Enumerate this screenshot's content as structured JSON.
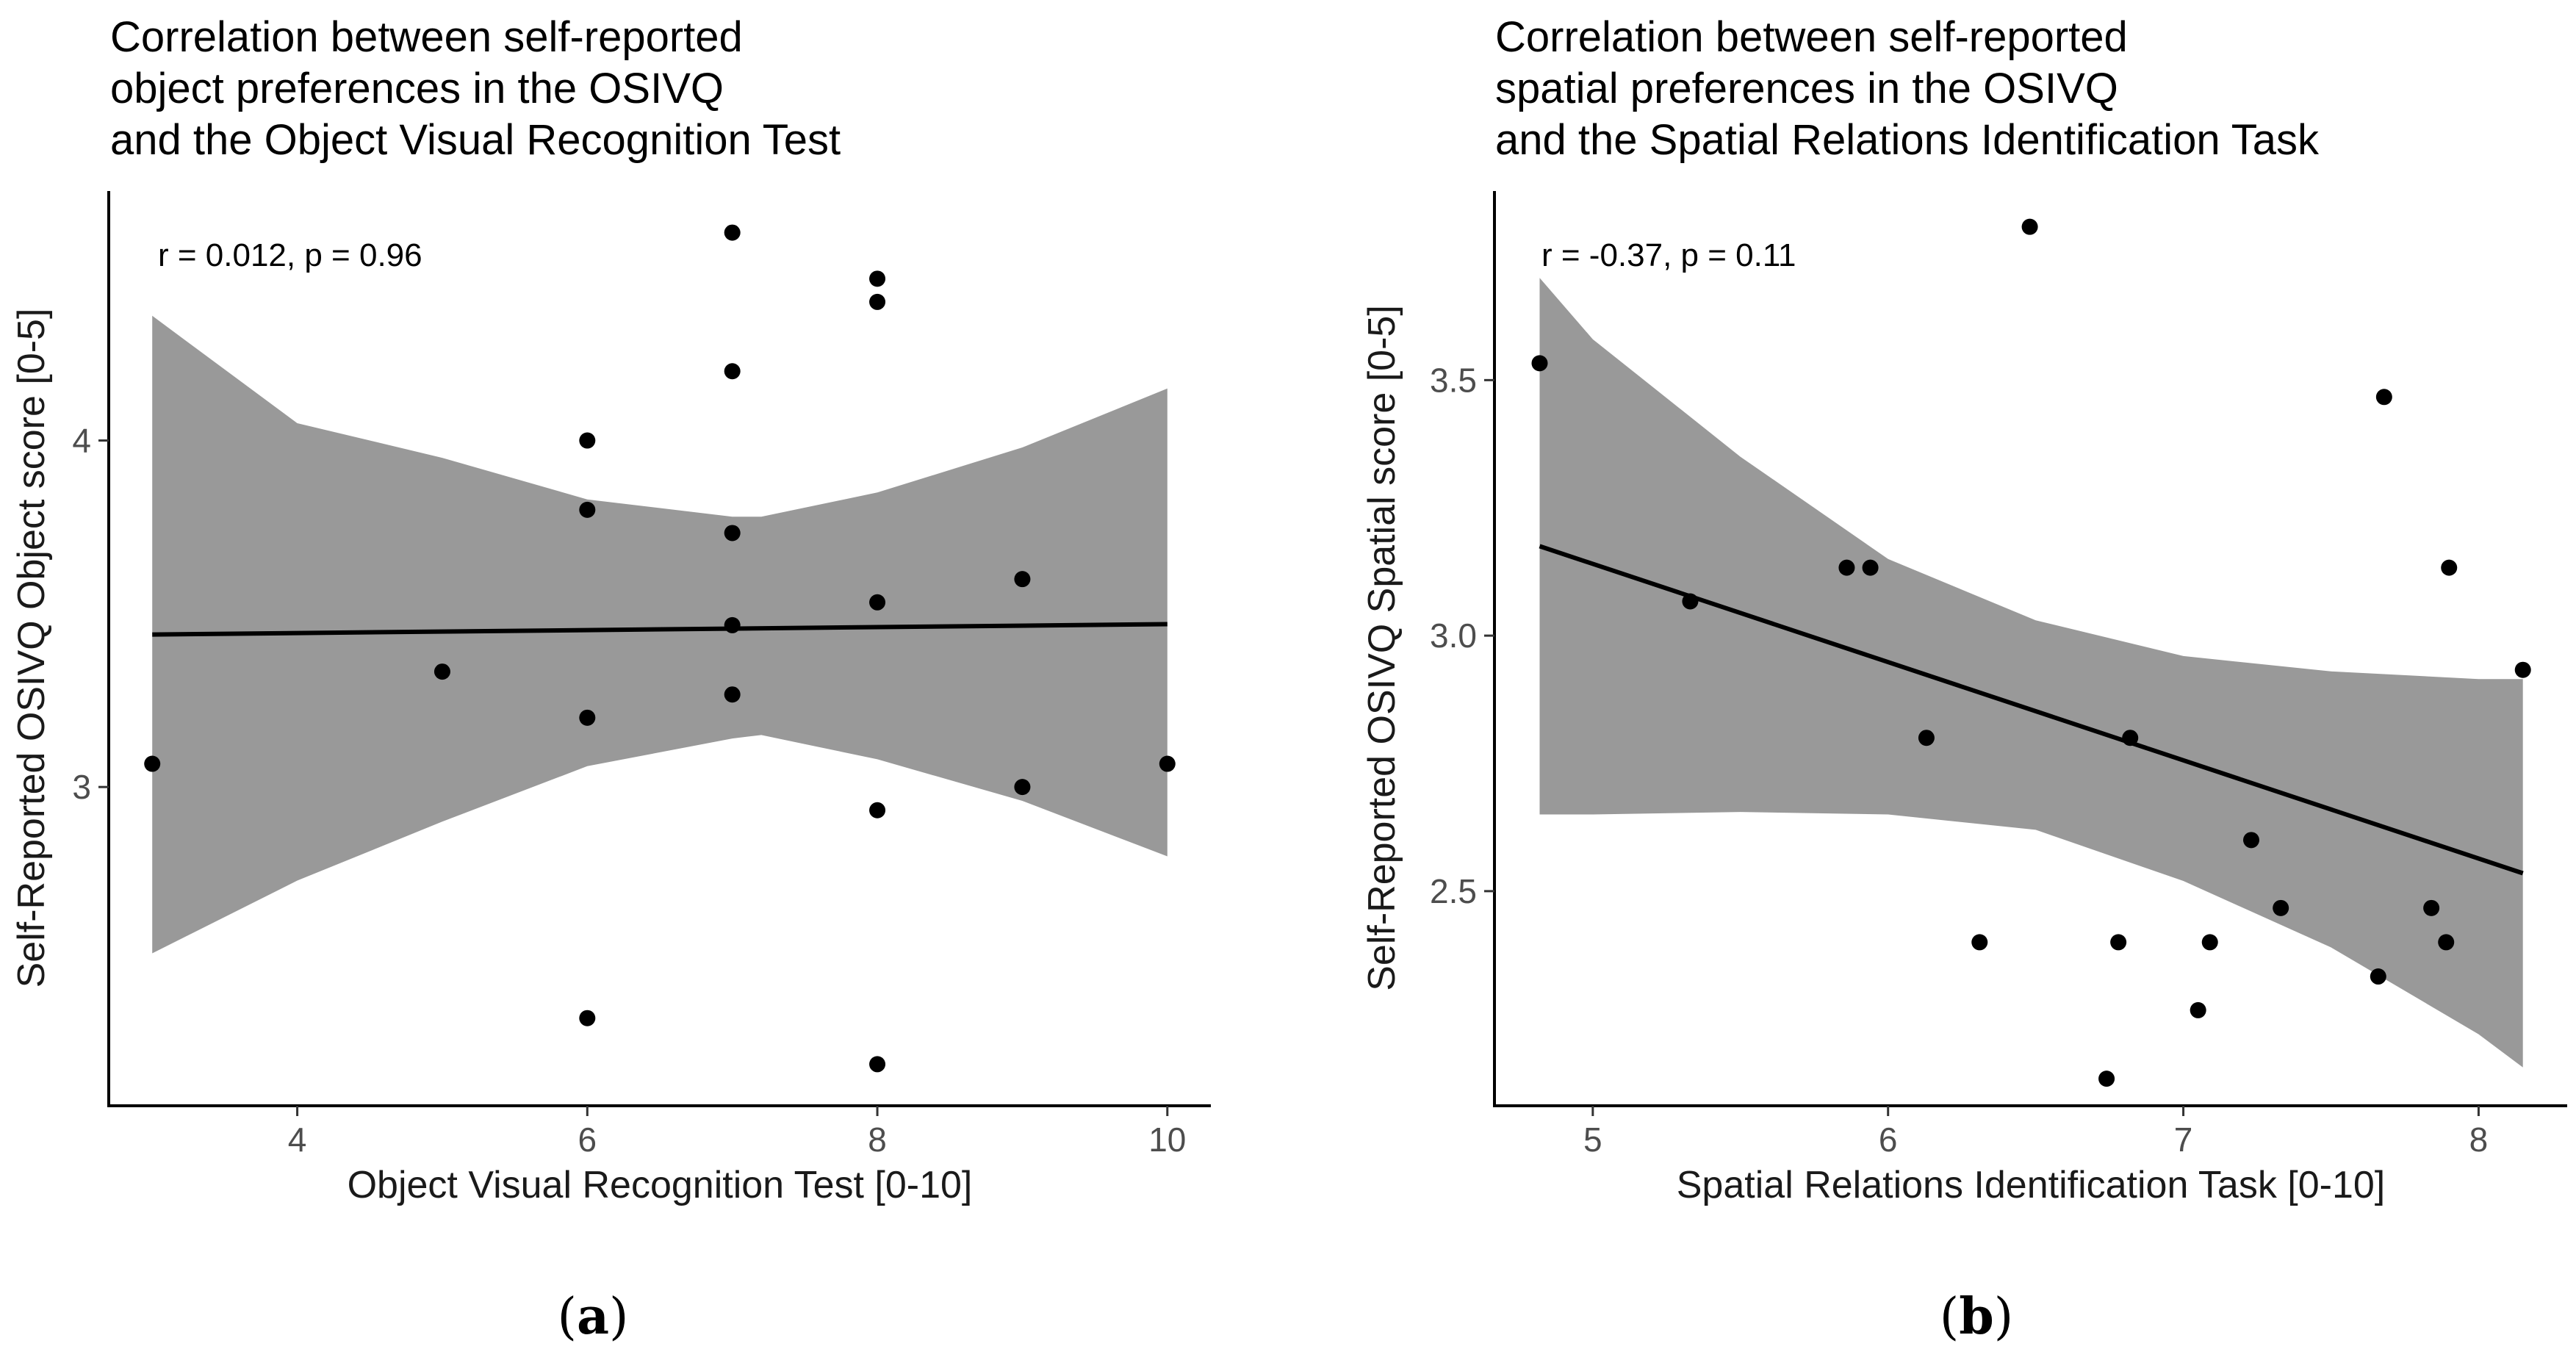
{
  "chart_data": [
    {
      "type": "scatter",
      "panel_label": "a",
      "title": [
        "Correlation between self-reported",
        "object preferences in the OSIVQ",
        "and the Object Visual Recognition Test"
      ],
      "xlabel": "Object Visual Recognition Test [0-10]",
      "ylabel": "Self-Reported OSIVQ Object score [0-5]",
      "xlim": [
        2.7,
        10.3
      ],
      "ylim": [
        2.08,
        4.72
      ],
      "xticks": [
        4,
        6,
        8,
        10
      ],
      "yticks": [
        3,
        4
      ],
      "annotation": "r = 0.012, p = 0.96",
      "points": [
        {
          "x": 3,
          "y": 3.067
        },
        {
          "x": 5,
          "y": 3.333
        },
        {
          "x": 6,
          "y": 4.0
        },
        {
          "x": 6,
          "y": 3.8
        },
        {
          "x": 6,
          "y": 3.2
        },
        {
          "x": 6,
          "y": 2.333
        },
        {
          "x": 7,
          "y": 4.6
        },
        {
          "x": 7,
          "y": 4.2
        },
        {
          "x": 7,
          "y": 3.733
        },
        {
          "x": 7,
          "y": 3.467
        },
        {
          "x": 7,
          "y": 3.267
        },
        {
          "x": 8,
          "y": 4.467
        },
        {
          "x": 8,
          "y": 4.4
        },
        {
          "x": 8,
          "y": 3.533
        },
        {
          "x": 8,
          "y": 2.933
        },
        {
          "x": 8,
          "y": 2.2
        },
        {
          "x": 9,
          "y": 3.6
        },
        {
          "x": 9,
          "y": 3.0
        },
        {
          "x": 10,
          "y": 3.067
        }
      ],
      "regression_line": {
        "x": [
          3,
          10
        ],
        "y": [
          3.44,
          3.47
        ]
      },
      "confidence_band": {
        "x": [
          3.0,
          4.0,
          5.0,
          6.0,
          7.0,
          7.2,
          8.0,
          9.0,
          10.0
        ],
        "upper": [
          4.36,
          4.05,
          3.95,
          3.83,
          3.78,
          3.78,
          3.85,
          3.98,
          4.15
        ],
        "lower": [
          2.52,
          2.73,
          2.9,
          3.06,
          3.14,
          3.15,
          3.08,
          2.96,
          2.8
        ]
      },
      "colors": {
        "point": "#000000",
        "line": "#000000",
        "band": "#999999"
      }
    },
    {
      "type": "scatter",
      "panel_label": "b",
      "title": [
        "Correlation between self-reported",
        "spatial preferences in the OSIVQ",
        "and the Spatial Relations Identification Task"
      ],
      "xlabel": "Spatial Relations Identification Task [0-10]",
      "ylabel": "Self-Reported OSIVQ Spatial score [0-5]",
      "xlim": [
        4.667,
        8.3
      ],
      "ylim": [
        2.08,
        3.87
      ],
      "xticks": [
        5,
        6,
        7,
        8
      ],
      "yticks": [
        2.5,
        3.0,
        3.5
      ],
      "ytick_labels": [
        "2.5",
        "3.0",
        "3.5"
      ],
      "annotation": "r = -0.37, p = 0.11",
      "points": [
        {
          "x": 4.82,
          "y": 3.533
        },
        {
          "x": 5.33,
          "y": 3.067
        },
        {
          "x": 5.86,
          "y": 3.133
        },
        {
          "x": 5.94,
          "y": 3.133
        },
        {
          "x": 6.13,
          "y": 2.8
        },
        {
          "x": 6.31,
          "y": 2.4
        },
        {
          "x": 6.48,
          "y": 3.8
        },
        {
          "x": 6.74,
          "y": 2.133
        },
        {
          "x": 6.78,
          "y": 2.4
        },
        {
          "x": 6.82,
          "y": 2.8
        },
        {
          "x": 7.05,
          "y": 2.267
        },
        {
          "x": 7.09,
          "y": 2.4
        },
        {
          "x": 7.23,
          "y": 2.6
        },
        {
          "x": 7.33,
          "y": 2.467
        },
        {
          "x": 7.66,
          "y": 2.333
        },
        {
          "x": 7.68,
          "y": 3.467
        },
        {
          "x": 7.84,
          "y": 2.467
        },
        {
          "x": 7.89,
          "y": 2.4
        },
        {
          "x": 7.9,
          "y": 3.133
        },
        {
          "x": 8.15,
          "y": 2.933
        }
      ],
      "regression_line": {
        "x": [
          4.82,
          8.15
        ],
        "y": [
          3.175,
          2.535
        ]
      },
      "confidence_band": {
        "x": [
          4.82,
          5.0,
          5.5,
          6.0,
          6.5,
          7.0,
          7.5,
          8.0,
          8.15
        ],
        "upper": [
          3.7,
          3.58,
          3.35,
          3.15,
          3.03,
          2.96,
          2.93,
          2.915,
          2.915
        ],
        "lower": [
          2.65,
          2.65,
          2.655,
          2.65,
          2.62,
          2.52,
          2.39,
          2.22,
          2.155
        ]
      },
      "colors": {
        "point": "#000000",
        "line": "#000000",
        "band": "#999999"
      }
    }
  ]
}
